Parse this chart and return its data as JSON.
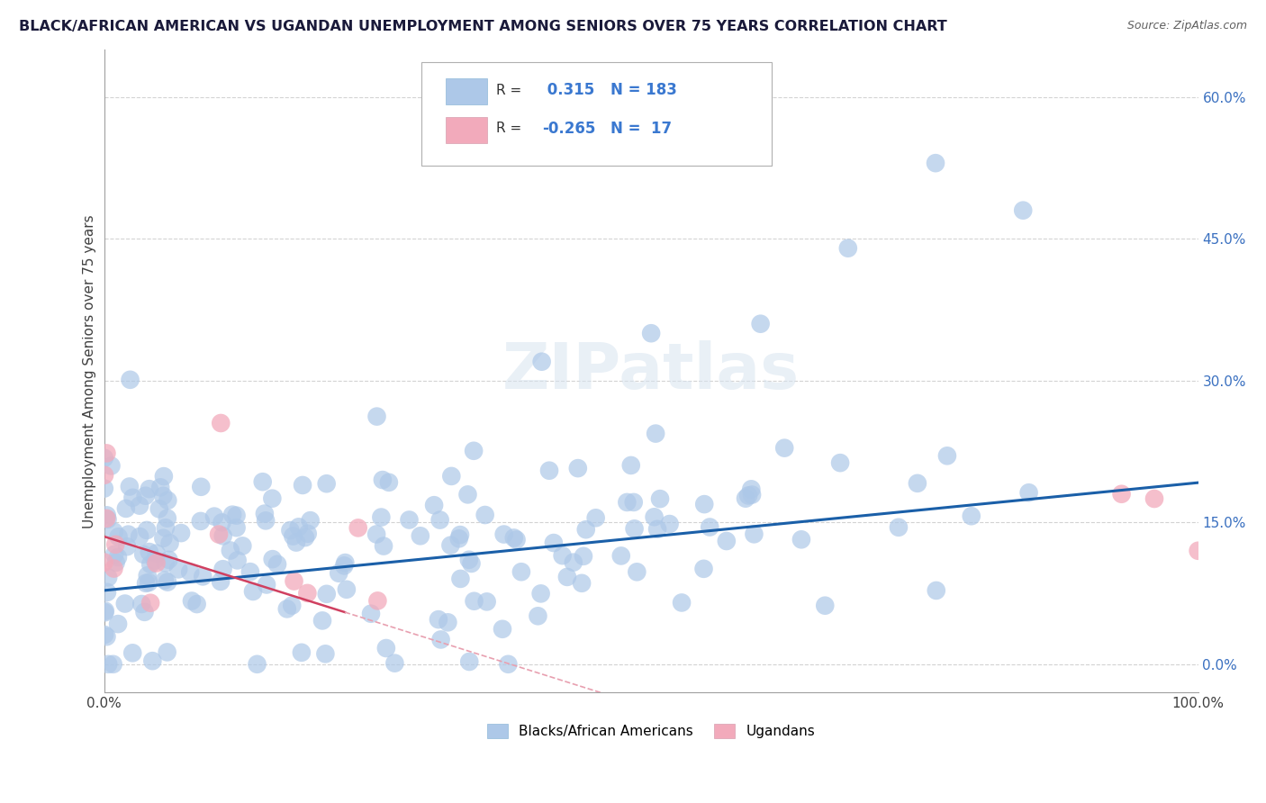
{
  "title": "BLACK/AFRICAN AMERICAN VS UGANDAN UNEMPLOYMENT AMONG SENIORS OVER 75 YEARS CORRELATION CHART",
  "source": "Source: ZipAtlas.com",
  "ylabel": "Unemployment Among Seniors over 75 years",
  "xlim": [
    0,
    1.0
  ],
  "ylim": [
    -0.03,
    0.65
  ],
  "yticks": [
    0.0,
    0.15,
    0.3,
    0.45,
    0.6
  ],
  "ytick_labels": [
    "0.0%",
    "15.0%",
    "30.0%",
    "45.0%",
    "60.0%"
  ],
  "xtick_labels": [
    "0.0%",
    "",
    "",
    "",
    "",
    "",
    "",
    "",
    "",
    "",
    "100.0%"
  ],
  "blue_R": 0.315,
  "blue_N": 183,
  "pink_R": -0.265,
  "pink_N": 17,
  "blue_color": "#adc8e8",
  "blue_line_color": "#1a5fa8",
  "pink_color": "#f2aabb",
  "pink_line_color": "#d04060",
  "pink_line_dash_color": "#e8a0b0",
  "watermark_color": "#d8e4f0",
  "background_color": "#ffffff",
  "blue_trend_y_start": 0.078,
  "blue_trend_y_end": 0.192,
  "pink_trend_x0": 0.0,
  "pink_trend_y0": 0.135,
  "pink_trend_x1": 0.22,
  "pink_trend_y1": 0.055
}
